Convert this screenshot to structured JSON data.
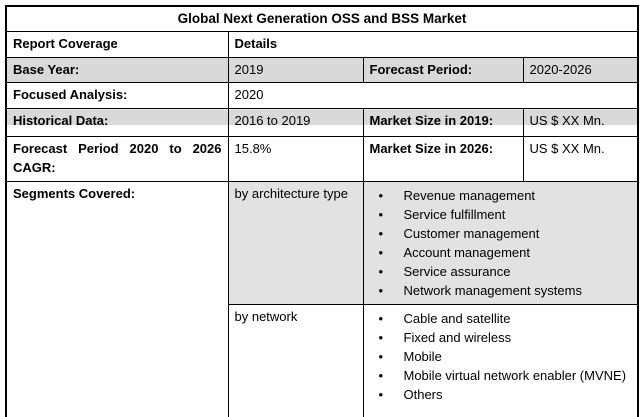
{
  "title": "Global Next Generation OSS and BSS Market",
  "columns": {
    "coverage": "Report Coverage",
    "details": "Details"
  },
  "facts": {
    "base_year": {
      "label": "Base Year:",
      "value": "2019"
    },
    "forecast_period": {
      "label": "Forecast Period:",
      "value": "2020-2026"
    },
    "focused_analysis": {
      "label": "Focused Analysis:",
      "value": "2020"
    },
    "historical_data": {
      "label": "Historical Data:",
      "value": "2016 to 2019"
    },
    "market_size_2019": {
      "label": "Market Size in 2019:",
      "value": "US $ XX Mn."
    },
    "cagr": {
      "label": "Forecast Period 2020 to 2026 CAGR:",
      "value": "15.8%"
    },
    "market_size_2026": {
      "label": "Market Size in 2026:",
      "value": "US $ XX Mn."
    }
  },
  "segments": {
    "label": "Segments Covered:",
    "groups": [
      {
        "name": "by architecture type",
        "items": [
          "Revenue management",
          "Service fulfillment",
          "Customer management",
          "Account management",
          "Service assurance",
          "Network management systems"
        ]
      },
      {
        "name": "by network",
        "items": [
          "Cable and satellite",
          "Fixed and wireless",
          "Mobile",
          "Mobile virtual network enabler (MVNE)",
          "Others"
        ]
      }
    ]
  },
  "glyphs": {
    "bullet": "•"
  },
  "colors": {
    "row_shade": "#d9d9d9",
    "segment_shade": "#e2e2e2",
    "border": "#000000",
    "background": "#ffffff"
  }
}
